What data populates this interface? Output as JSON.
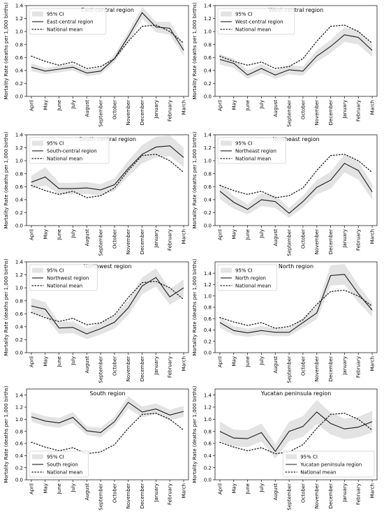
{
  "chart_data": [
    {
      "type": "line",
      "title": "East-central region",
      "ylabel": "Mortality Rate (deaths per 1,000 births)",
      "xlabel": "",
      "categories": [
        "April",
        "May",
        "June",
        "July",
        "August",
        "September",
        "October",
        "November",
        "December",
        "January",
        "February",
        "March"
      ],
      "ylim": [
        0,
        1.4
      ],
      "yticks": [
        0.0,
        0.2,
        0.4,
        0.6,
        0.8,
        1.0,
        1.2,
        1.4
      ],
      "ytick_labels": [
        "0.0",
        "0.2",
        "0.4",
        "0.6",
        "0.8",
        "1.0",
        "1.2",
        "1.4"
      ],
      "legend_position": "top-left",
      "series": [
        {
          "name": "East-central region",
          "style": "solid",
          "values": [
            0.45,
            0.39,
            0.42,
            0.45,
            0.36,
            0.39,
            0.58,
            0.92,
            1.29,
            1.07,
            1.05,
            0.71
          ]
        },
        {
          "name": "National mean",
          "style": "dotted",
          "values": [
            0.62,
            0.54,
            0.48,
            0.53,
            0.43,
            0.46,
            0.58,
            0.85,
            1.08,
            1.1,
            1.0,
            0.82
          ]
        }
      ],
      "ci": {
        "name": "95% CI",
        "lower": [
          0.39,
          0.34,
          0.37,
          0.4,
          0.31,
          0.34,
          0.52,
          0.84,
          1.2,
          0.99,
          0.95,
          0.62
        ],
        "upper": [
          0.51,
          0.44,
          0.47,
          0.5,
          0.41,
          0.44,
          0.64,
          1.0,
          1.38,
          1.15,
          1.15,
          0.8
        ]
      }
    },
    {
      "type": "line",
      "title": "West-central region",
      "ylabel": "Mortality Rate (deaths per 1,000 births)",
      "xlabel": "",
      "categories": [
        "April",
        "May",
        "June",
        "July",
        "August",
        "September",
        "October",
        "November",
        "December",
        "January",
        "February",
        "March"
      ],
      "ylim": [
        0,
        1.4
      ],
      "yticks": [
        0.0,
        0.2,
        0.4,
        0.6,
        0.8,
        1.0,
        1.2,
        1.4
      ],
      "ytick_labels": [
        "0.0",
        "0.2",
        "0.4",
        "0.6",
        "0.8",
        "1.0",
        "1.2",
        "1.4"
      ],
      "legend_position": "top-left",
      "series": [
        {
          "name": "West-central region",
          "style": "solid",
          "values": [
            0.57,
            0.51,
            0.33,
            0.43,
            0.33,
            0.41,
            0.39,
            0.62,
            0.77,
            0.95,
            0.91,
            0.71
          ]
        },
        {
          "name": "National mean",
          "style": "dotted",
          "values": [
            0.62,
            0.54,
            0.48,
            0.53,
            0.43,
            0.46,
            0.58,
            0.85,
            1.08,
            1.1,
            1.0,
            0.82
          ]
        }
      ],
      "ci": {
        "name": "95% CI",
        "lower": [
          0.49,
          0.44,
          0.27,
          0.36,
          0.27,
          0.34,
          0.32,
          0.53,
          0.67,
          0.84,
          0.8,
          0.61
        ],
        "upper": [
          0.65,
          0.58,
          0.4,
          0.5,
          0.4,
          0.48,
          0.46,
          0.71,
          0.87,
          1.06,
          1.02,
          0.81
        ]
      }
    },
    {
      "type": "line",
      "title": "South-central region",
      "ylabel": "Mortality Rate (deaths per 1,000 births)",
      "xlabel": "",
      "categories": [
        "April",
        "May",
        "June",
        "July",
        "August",
        "September",
        "October",
        "November",
        "December",
        "January",
        "February",
        "March"
      ],
      "ylim": [
        0,
        1.4
      ],
      "yticks": [
        0.0,
        0.2,
        0.4,
        0.6,
        0.8,
        1.0,
        1.2,
        1.4
      ],
      "ytick_labels": [
        "0.0",
        "0.2",
        "0.4",
        "0.6",
        "0.8",
        "1.0",
        "1.2",
        "1.4"
      ],
      "legend_position": "top-left",
      "series": [
        {
          "name": "South-central region",
          "style": "solid",
          "values": [
            0.67,
            0.75,
            0.57,
            0.57,
            0.58,
            0.55,
            0.63,
            0.88,
            1.1,
            1.21,
            1.23,
            1.05
          ]
        },
        {
          "name": "National mean",
          "style": "dotted",
          "values": [
            0.62,
            0.54,
            0.48,
            0.53,
            0.43,
            0.46,
            0.58,
            0.85,
            1.08,
            1.1,
            1.0,
            0.82
          ]
        }
      ],
      "ci": {
        "name": "95% CI",
        "lower": [
          0.57,
          0.62,
          0.48,
          0.48,
          0.49,
          0.46,
          0.53,
          0.76,
          0.96,
          1.05,
          1.07,
          0.9
        ],
        "upper": [
          0.77,
          0.9,
          0.66,
          0.66,
          0.67,
          0.64,
          0.73,
          1.0,
          1.24,
          1.37,
          1.39,
          1.2
        ]
      }
    },
    {
      "type": "line",
      "title": "Northeast region",
      "ylabel": "Mortality Rate (deaths per 1,000 births)",
      "xlabel": "",
      "categories": [
        "April",
        "May",
        "June",
        "July",
        "August",
        "September",
        "October",
        "November",
        "December",
        "January",
        "February",
        "March"
      ],
      "ylim": [
        0,
        1.4
      ],
      "yticks": [
        0.0,
        0.2,
        0.4,
        0.6,
        0.8,
        1.0,
        1.2,
        1.4
      ],
      "ytick_labels": [
        "0.0",
        "0.2",
        "0.4",
        "0.6",
        "0.8",
        "1.0",
        "1.2",
        "1.4"
      ],
      "legend_position": "top-left",
      "series": [
        {
          "name": "Northeast region",
          "style": "solid",
          "values": [
            0.53,
            0.36,
            0.25,
            0.4,
            0.37,
            0.19,
            0.37,
            0.59,
            0.7,
            0.96,
            0.85,
            0.52
          ]
        },
        {
          "name": "National mean",
          "style": "dotted",
          "values": [
            0.62,
            0.54,
            0.48,
            0.53,
            0.43,
            0.46,
            0.58,
            0.85,
            1.08,
            1.1,
            1.0,
            0.82
          ]
        }
      ],
      "ci": {
        "name": "95% CI",
        "lower": [
          0.41,
          0.26,
          0.17,
          0.3,
          0.27,
          0.12,
          0.28,
          0.48,
          0.57,
          0.82,
          0.71,
          0.4
        ],
        "upper": [
          0.65,
          0.46,
          0.33,
          0.5,
          0.47,
          0.27,
          0.46,
          0.7,
          0.83,
          1.1,
          0.99,
          0.64
        ]
      }
    },
    {
      "type": "line",
      "title": "Northwest region",
      "ylabel": "Mortality Rate (deaths per 1,000 births)",
      "xlabel": "",
      "categories": [
        "April",
        "May",
        "June",
        "July",
        "August",
        "September",
        "October",
        "November",
        "December",
        "January",
        "February",
        "March"
      ],
      "ylim": [
        0,
        1.4
      ],
      "yticks": [
        0.0,
        0.2,
        0.4,
        0.6,
        0.8,
        1.0,
        1.2,
        1.4
      ],
      "ytick_labels": [
        "0.0",
        "0.2",
        "0.4",
        "0.6",
        "0.8",
        "1.0",
        "1.2",
        "1.4"
      ],
      "legend_position": "top-left",
      "series": [
        {
          "name": "Northwest region",
          "style": "solid",
          "values": [
            0.72,
            0.67,
            0.38,
            0.39,
            0.29,
            0.37,
            0.47,
            0.69,
            1.03,
            1.16,
            0.86,
            1.0
          ]
        },
        {
          "name": "National mean",
          "style": "dotted",
          "values": [
            0.62,
            0.54,
            0.48,
            0.53,
            0.43,
            0.46,
            0.58,
            0.85,
            1.08,
            1.1,
            1.0,
            0.82
          ]
        }
      ],
      "ci": {
        "name": "95% CI",
        "lower": [
          0.6,
          0.56,
          0.29,
          0.3,
          0.21,
          0.28,
          0.37,
          0.58,
          0.9,
          1.02,
          0.74,
          0.87
        ],
        "upper": [
          0.84,
          0.78,
          0.47,
          0.48,
          0.37,
          0.46,
          0.57,
          0.8,
          1.16,
          1.3,
          0.98,
          1.13
        ]
      }
    },
    {
      "type": "line",
      "title": "North region",
      "ylabel": "Mortality Rate (deaths per 1,000 births)",
      "xlabel": "",
      "categories": [
        "April",
        "May",
        "June",
        "July",
        "August",
        "September",
        "October",
        "November",
        "December",
        "January",
        "February",
        "March"
      ],
      "ylim": [
        0,
        1.6
      ],
      "yticks": [
        0.0,
        0.2,
        0.4,
        0.6,
        0.8,
        1.0,
        1.2,
        1.4
      ],
      "ytick_labels": [
        "0.0",
        "0.2",
        "0.4",
        "0.6",
        "0.8",
        "1.0",
        "1.2",
        "1.4"
      ],
      "legend_position": "top-left",
      "series": [
        {
          "name": "North region",
          "style": "solid",
          "values": [
            0.53,
            0.39,
            0.35,
            0.39,
            0.36,
            0.36,
            0.53,
            0.7,
            1.36,
            1.38,
            1.04,
            0.75
          ]
        },
        {
          "name": "National mean",
          "style": "dotted",
          "values": [
            0.62,
            0.54,
            0.48,
            0.53,
            0.43,
            0.46,
            0.58,
            0.85,
            1.08,
            1.1,
            1.0,
            0.82
          ]
        }
      ],
      "ci": {
        "name": "95% CI",
        "lower": [
          0.44,
          0.31,
          0.28,
          0.31,
          0.29,
          0.29,
          0.44,
          0.59,
          1.18,
          1.2,
          0.89,
          0.63
        ],
        "upper": [
          0.62,
          0.47,
          0.42,
          0.47,
          0.43,
          0.43,
          0.62,
          0.81,
          1.54,
          1.56,
          1.19,
          0.87
        ]
      }
    },
    {
      "type": "line",
      "title": "South region",
      "ylabel": "Mortality Rate (deaths per 1,000 births)",
      "xlabel": "",
      "categories": [
        "April",
        "May",
        "June",
        "July",
        "August",
        "September",
        "October",
        "November",
        "December",
        "January",
        "February",
        "March"
      ],
      "ylim": [
        0,
        1.5
      ],
      "yticks": [
        0.0,
        0.2,
        0.4,
        0.6,
        0.8,
        1.0,
        1.2,
        1.4
      ],
      "ytick_labels": [
        "0.0",
        "0.2",
        "0.4",
        "0.6",
        "0.8",
        "1.0",
        "1.2",
        "1.4"
      ],
      "legend_position": "bottom-left",
      "series": [
        {
          "name": "South region",
          "style": "solid",
          "values": [
            1.04,
            0.97,
            0.94,
            1.03,
            0.81,
            0.78,
            0.96,
            1.28,
            1.12,
            1.17,
            1.07,
            1.13
          ]
        },
        {
          "name": "National mean",
          "style": "dotted",
          "values": [
            0.62,
            0.54,
            0.48,
            0.53,
            0.43,
            0.46,
            0.58,
            0.85,
            1.08,
            1.1,
            1.0,
            0.82
          ]
        }
      ],
      "ci": {
        "name": "95% CI",
        "lower": [
          0.96,
          0.89,
          0.86,
          0.94,
          0.74,
          0.7,
          0.88,
          1.18,
          1.03,
          1.08,
          0.98,
          1.04
        ],
        "upper": [
          1.12,
          1.05,
          1.02,
          1.12,
          0.88,
          0.86,
          1.04,
          1.38,
          1.21,
          1.26,
          1.16,
          1.22
        ]
      }
    },
    {
      "type": "line",
      "title": "Yucatan peninsula region",
      "ylabel": "Mortality Rate (deaths per 1,000 births)",
      "xlabel": "",
      "categories": [
        "April",
        "May",
        "June",
        "July",
        "August",
        "September",
        "October",
        "November",
        "December",
        "January",
        "February",
        "March"
      ],
      "ylim": [
        0,
        1.5
      ],
      "yticks": [
        0.0,
        0.2,
        0.4,
        0.6,
        0.8,
        1.0,
        1.2,
        1.4
      ],
      "ytick_labels": [
        "0.0",
        "0.2",
        "0.4",
        "0.6",
        "0.8",
        "1.0",
        "1.2",
        "1.4"
      ],
      "legend_position": "bottom-right",
      "series": [
        {
          "name": "Yucatan peninsula region",
          "style": "solid",
          "values": [
            0.8,
            0.69,
            0.68,
            0.78,
            0.47,
            0.8,
            0.88,
            1.12,
            0.93,
            0.84,
            0.87,
            0.96
          ]
        },
        {
          "name": "National mean",
          "style": "dotted",
          "values": [
            0.62,
            0.54,
            0.48,
            0.53,
            0.43,
            0.46,
            0.58,
            0.85,
            1.08,
            1.1,
            1.0,
            0.82
          ]
        }
      ],
      "ci": {
        "name": "95% CI",
        "lower": [
          0.64,
          0.55,
          0.54,
          0.63,
          0.35,
          0.64,
          0.71,
          0.92,
          0.75,
          0.67,
          0.7,
          0.78
        ],
        "upper": [
          0.96,
          0.83,
          0.82,
          0.93,
          0.59,
          0.96,
          1.05,
          1.32,
          1.11,
          1.01,
          1.04,
          1.14
        ]
      }
    }
  ],
  "colors": {
    "ci_fill": "#e3e3e3",
    "line": "#1a1a1a",
    "axis": "#222222",
    "legend_border": "#cccccc"
  }
}
